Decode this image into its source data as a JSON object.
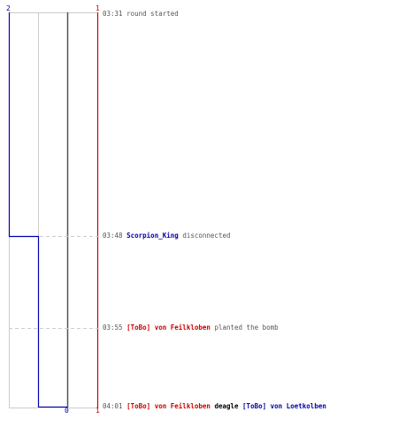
{
  "timeline": {
    "blue_start_count": "2",
    "red_start_count": "1",
    "blue_end_count": "0",
    "red_end_count": "1",
    "colors": {
      "ct": "#0000aa",
      "t": "#cc0000",
      "grid": "#cccccc",
      "dark_line": "#555555",
      "text": "#555555"
    }
  },
  "events": [
    {
      "time": "03:31",
      "text": "round started"
    },
    {
      "time": "03:48",
      "player": "Scorpion_King",
      "text": "disconnected"
    },
    {
      "time": "03:55",
      "player": "[ToBo] von Feilkloben",
      "text": "planted the bomb"
    },
    {
      "time": "04:01",
      "killer": "[ToBo] von Feilkloben",
      "weapon": "deagle",
      "victim": "[ToBo] von Loetkolben"
    }
  ]
}
